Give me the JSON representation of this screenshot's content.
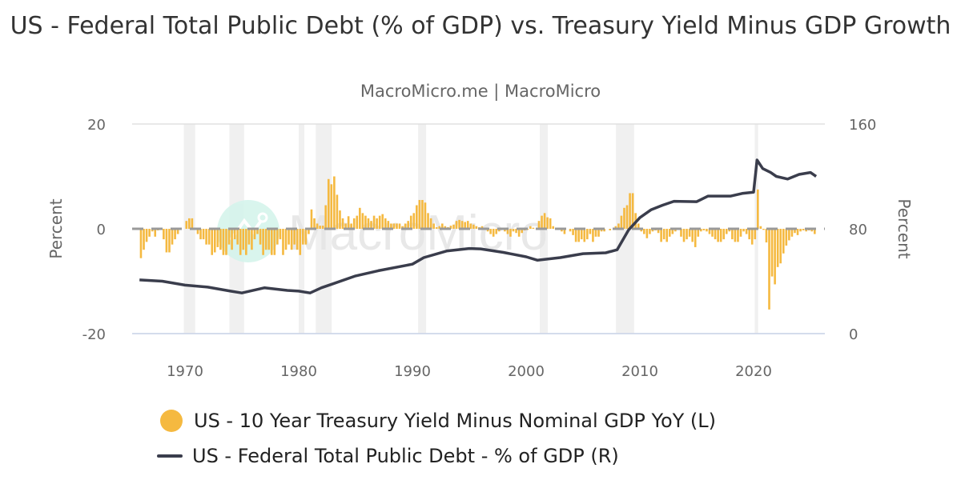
{
  "title": "US - Federal Total Public Debt (% of GDP) vs. Treasury Yield Minus GDP Growth",
  "subtitle": "MacroMicro.me | MacroMicro",
  "watermark": "MacroMicro",
  "chart_data": {
    "type": "bar+line",
    "grid": true,
    "legend_position": "bottom",
    "x_ticks": [
      "1970",
      "1980",
      "1990",
      "2000",
      "2010",
      "2020"
    ],
    "left_axis": {
      "label": "Percent",
      "ylim": [
        -20,
        20
      ],
      "ticks": [
        "20",
        "0",
        "-20"
      ]
    },
    "right_axis": {
      "label": "Percent",
      "ylim": [
        0,
        160
      ],
      "ticks": [
        "160",
        "80",
        "0"
      ]
    },
    "recessions": [
      [
        1969.9,
        1970.9
      ],
      [
        1973.9,
        1975.2
      ],
      [
        1980.0,
        1980.5
      ],
      [
        1981.5,
        1982.9
      ],
      [
        1990.5,
        1991.2
      ],
      [
        2001.2,
        2001.9
      ],
      [
        2007.9,
        2009.5
      ],
      [
        2020.1,
        2020.4
      ]
    ],
    "colors": {
      "bars": "#F5B940",
      "line": "#3A3D4C",
      "recession": "#F0F0F0",
      "zero_line": "#999999"
    },
    "series": [
      {
        "name": "US - 10 Year Treasury Yield Minus Nominal GDP YoY (L)",
        "type": "bar",
        "axis": "left",
        "start": 1966.0,
        "frequency": "quarterly",
        "values": [
          -5.6,
          -4,
          -2.5,
          -1.5,
          -0.5,
          -1.5,
          -0.3,
          0,
          -2,
          -4.5,
          -4.5,
          -3,
          -2,
          -1,
          0,
          0,
          1.5,
          2,
          2,
          0,
          -1,
          -2,
          -2,
          -3,
          -3,
          -5,
          -4.5,
          -3.5,
          -4,
          -5,
          -5,
          -3,
          -4,
          -2,
          -3,
          -5,
          -4,
          -5,
          -3,
          -4,
          -2,
          -1,
          -3,
          -5,
          -4,
          -4,
          -5,
          -5,
          -3,
          -2,
          -5,
          -4,
          -3,
          -4,
          -3,
          -4,
          -5,
          -3,
          -3,
          -1,
          3.7,
          2,
          1,
          0.6,
          0.6,
          4.5,
          9.5,
          8.5,
          10,
          6.5,
          3.5,
          2,
          1,
          2.4,
          1,
          2,
          2.5,
          4,
          3,
          2.5,
          2,
          1.5,
          2.5,
          2,
          2.5,
          2.8,
          2,
          1.5,
          1,
          1,
          1,
          1,
          0.5,
          1,
          1.5,
          2.5,
          3,
          4.5,
          5.5,
          5.5,
          5,
          3,
          2,
          1,
          0.3,
          0.5,
          1,
          0.5,
          0.3,
          0.6,
          0.8,
          1.5,
          1.7,
          1.5,
          1.3,
          1.5,
          1,
          0.8,
          0.5,
          0.3,
          0.5,
          0,
          -0.5,
          -1,
          -1.5,
          -1,
          -0.5,
          0,
          -0.5,
          -1,
          -1.5,
          -0.5,
          -0.8,
          -1.5,
          -0.8,
          -0.3,
          -0.2,
          0.5,
          0.2,
          0,
          1.5,
          2.5,
          3,
          2.2,
          2,
          0.5,
          -0.2,
          0,
          -0.5,
          -1,
          0,
          -0.5,
          -1.2,
          -2.5,
          -2.5,
          -2,
          -2.5,
          -2,
          -1,
          -2.5,
          -1.5,
          -1.5,
          -0.5,
          -0.5,
          0,
          -0.3,
          0,
          0.5,
          1,
          2.5,
          4,
          4.5,
          6.8,
          6.8,
          3,
          1,
          -0.5,
          -1,
          -1.8,
          -1,
          -0.5,
          -0.3,
          -0.8,
          -2.5,
          -2,
          -2.5,
          -1.5,
          -1,
          -0.5,
          -0.2,
          -1.5,
          -2.5,
          -2,
          -1.5,
          -2.5,
          -3.5,
          -1.5,
          -0.5,
          -0.3,
          -0.5,
          -1,
          -1.5,
          -2,
          -2.5,
          -2.5,
          -2,
          -1,
          -0.5,
          -2,
          -2.5,
          -2.5,
          -1.5,
          -0.5,
          -1,
          -2,
          -3,
          -2,
          7.5,
          0.5,
          -0.2,
          -2.6,
          -15.4,
          -9.1,
          -10.6,
          -7.3,
          -6.6,
          -4.7,
          -3.2,
          -2.2,
          -1.5,
          -0.8,
          -1.2,
          -0.5,
          -0.3,
          -0.5,
          -0.3,
          -0.5,
          -1
        ]
      },
      {
        "name": "US - Federal Total Public Debt - % of GDP (R)",
        "type": "line",
        "axis": "right",
        "x": [
          1966,
          1968,
          1970,
          1972,
          1974,
          1975,
          1977,
          1979,
          1980,
          1981,
          1982,
          1983,
          1985,
          1987,
          1990,
          1991,
          1993,
          1995,
          1996,
          1998,
          2000,
          2001,
          2003,
          2005,
          2007,
          2008,
          2009,
          2010,
          2011,
          2012,
          2013,
          2015,
          2016,
          2018,
          2019,
          2020.0,
          2020.3,
          2020.8,
          2021.5,
          2022,
          2023,
          2024,
          2025,
          2025.5
        ],
        "values": [
          41,
          40,
          37,
          35.5,
          32.4,
          31,
          35,
          33,
          32.4,
          31,
          35,
          38,
          44,
          48,
          53,
          58,
          63,
          65,
          64.7,
          62,
          58.6,
          56,
          58,
          61,
          61.7,
          64,
          79,
          88.5,
          94.6,
          98,
          101,
          100.7,
          105,
          105,
          107,
          108,
          132.5,
          126,
          123,
          120,
          118,
          121.5,
          123,
          120
        ]
      }
    ]
  }
}
